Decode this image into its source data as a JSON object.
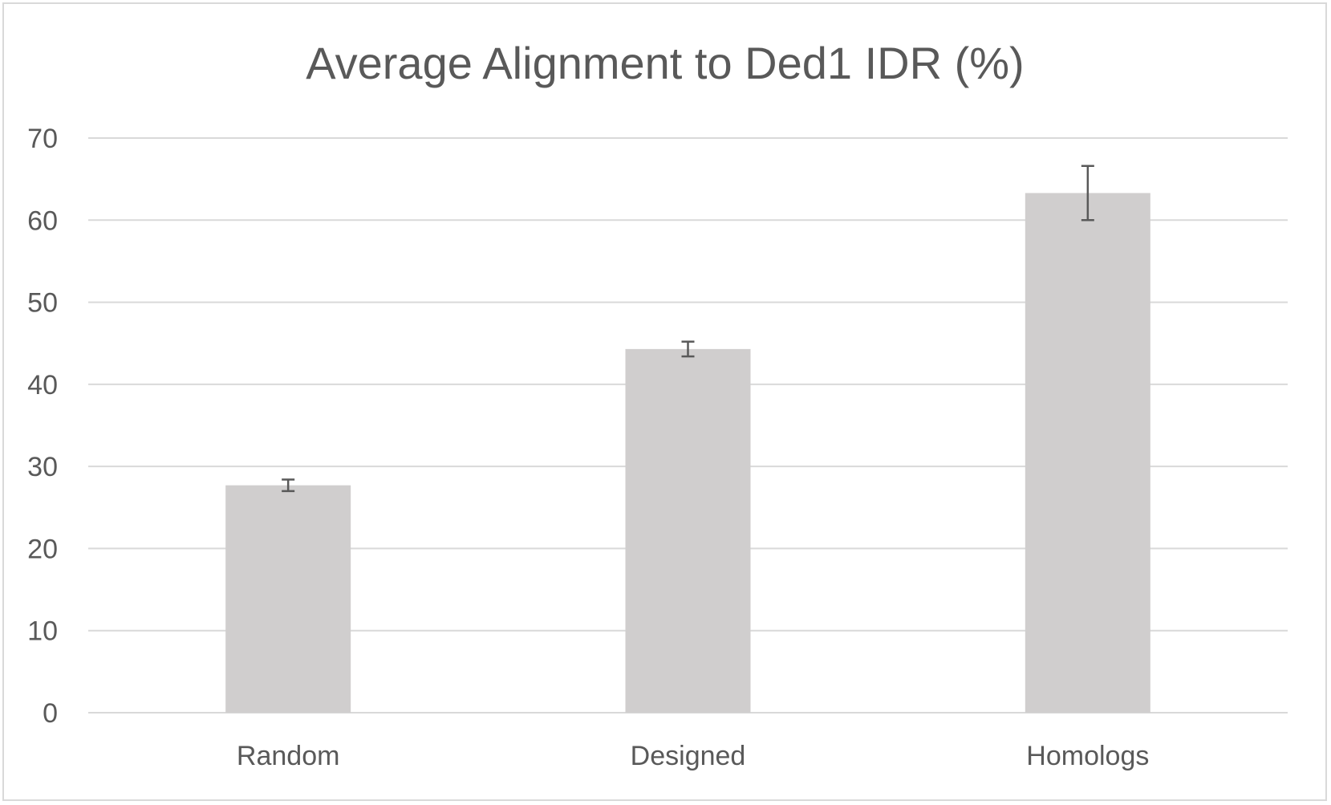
{
  "chart_data": {
    "type": "bar",
    "title": "Average Alignment to Ded1 IDR  (%)",
    "xlabel": "",
    "ylabel": "",
    "categories": [
      "Random",
      "Designed",
      "Homologs"
    ],
    "values": [
      27.7,
      44.3,
      63.3
    ],
    "error": [
      0.7,
      0.9,
      3.3
    ],
    "ylim": [
      0,
      70
    ],
    "yticks": [
      0,
      10,
      20,
      30,
      40,
      50,
      60,
      70
    ],
    "grid": true,
    "legend": "none",
    "colors": {
      "bar": "#d0cece",
      "error_bar": "#595959",
      "grid": "#d9d9d9",
      "text": "#595959"
    }
  }
}
